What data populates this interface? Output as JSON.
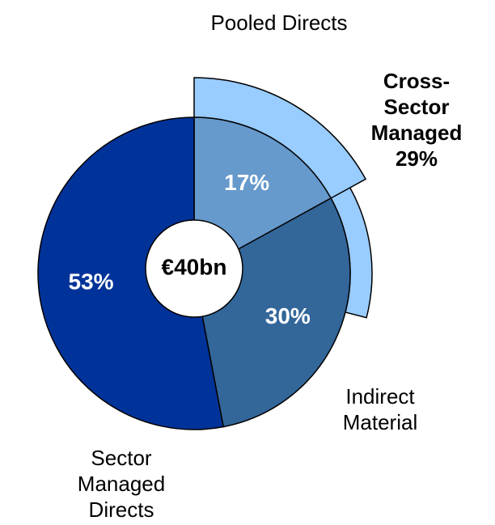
{
  "chart_data": {
    "type": "donut",
    "center_label": "€40bn",
    "categories": [
      "Pooled Directs",
      "Indirect Material",
      "Sector Managed Directs"
    ],
    "values": [
      17,
      30,
      53
    ],
    "value_labels": [
      "17%",
      "30%",
      "53%"
    ],
    "colors": [
      "#6699cc",
      "#336699",
      "#003399"
    ],
    "overlay": {
      "name": "Cross-Sector Managed",
      "value": 29,
      "value_label": "29%",
      "color": "#99ccff"
    }
  }
}
